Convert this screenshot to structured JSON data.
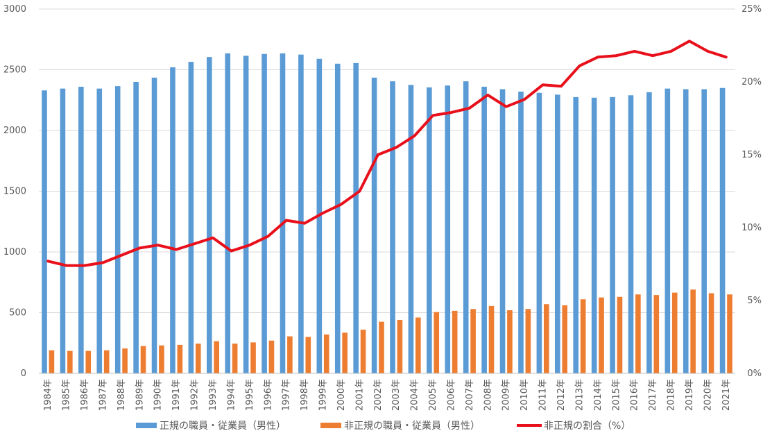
{
  "chart_data": {
    "type": "bar",
    "categories": [
      "1984年",
      "1985年",
      "1986年",
      "1987年",
      "1988年",
      "1989年",
      "1990年",
      "1991年",
      "1992年",
      "1993年",
      "1994年",
      "1995年",
      "1996年",
      "1997年",
      "1998年",
      "1999年",
      "2000年",
      "2001年",
      "2002年",
      "2003年",
      "2004年",
      "2005年",
      "2006年",
      "2007年",
      "2008年",
      "2009年",
      "2010年",
      "2011年",
      "2012年",
      "2013年",
      "2014年",
      "2015年",
      "2016年",
      "2017年",
      "2018年",
      "2019年",
      "2020年",
      "2021年"
    ],
    "series": [
      {
        "name": "正規の職員・従業員（男性）",
        "type": "bar",
        "axis": "left",
        "color": "#5B9BD5",
        "values": [
          2330,
          2345,
          2360,
          2345,
          2365,
          2400,
          2435,
          2520,
          2565,
          2605,
          2635,
          2615,
          2630,
          2635,
          2625,
          2590,
          2550,
          2555,
          2435,
          2405,
          2375,
          2355,
          2370,
          2405,
          2360,
          2340,
          2320,
          2310,
          2295,
          2275,
          2270,
          2275,
          2290,
          2315,
          2345,
          2340,
          2340,
          2350
        ]
      },
      {
        "name": "非正規の職員・従業員（男性）",
        "type": "bar",
        "axis": "left",
        "color": "#ED7D31",
        "values": [
          190,
          185,
          185,
          190,
          205,
          225,
          230,
          235,
          245,
          265,
          245,
          255,
          270,
          305,
          300,
          320,
          335,
          360,
          425,
          440,
          460,
          505,
          515,
          530,
          555,
          520,
          530,
          570,
          560,
          610,
          625,
          630,
          650,
          645,
          665,
          690,
          660,
          650
        ]
      },
      {
        "name": "非正規の割合（%）",
        "type": "line",
        "axis": "right",
        "color": "#E8101B",
        "values": [
          7.7,
          7.4,
          7.4,
          7.6,
          8.1,
          8.6,
          8.8,
          8.5,
          8.9,
          9.3,
          8.4,
          8.8,
          9.4,
          10.5,
          10.3,
          11.0,
          11.6,
          12.5,
          15.0,
          15.5,
          16.3,
          17.7,
          17.9,
          18.2,
          19.1,
          18.3,
          18.8,
          19.8,
          19.7,
          21.1,
          21.7,
          21.8,
          22.1,
          21.8,
          22.1,
          22.8,
          22.1,
          21.7
        ]
      }
    ],
    "y_left": {
      "min": 0,
      "max": 3000,
      "ticks": [
        "0",
        "500",
        "1000",
        "1500",
        "2000",
        "2500",
        "3000"
      ]
    },
    "y_right": {
      "min": 0,
      "max": 25,
      "ticks": [
        "0%",
        "5%",
        "10%",
        "15%",
        "20%",
        "25%"
      ]
    },
    "grid": true,
    "legend_position": "bottom",
    "colors": {
      "grid": "#D9D9D9",
      "axis": "#BFBFBF",
      "text": "#595959"
    }
  }
}
